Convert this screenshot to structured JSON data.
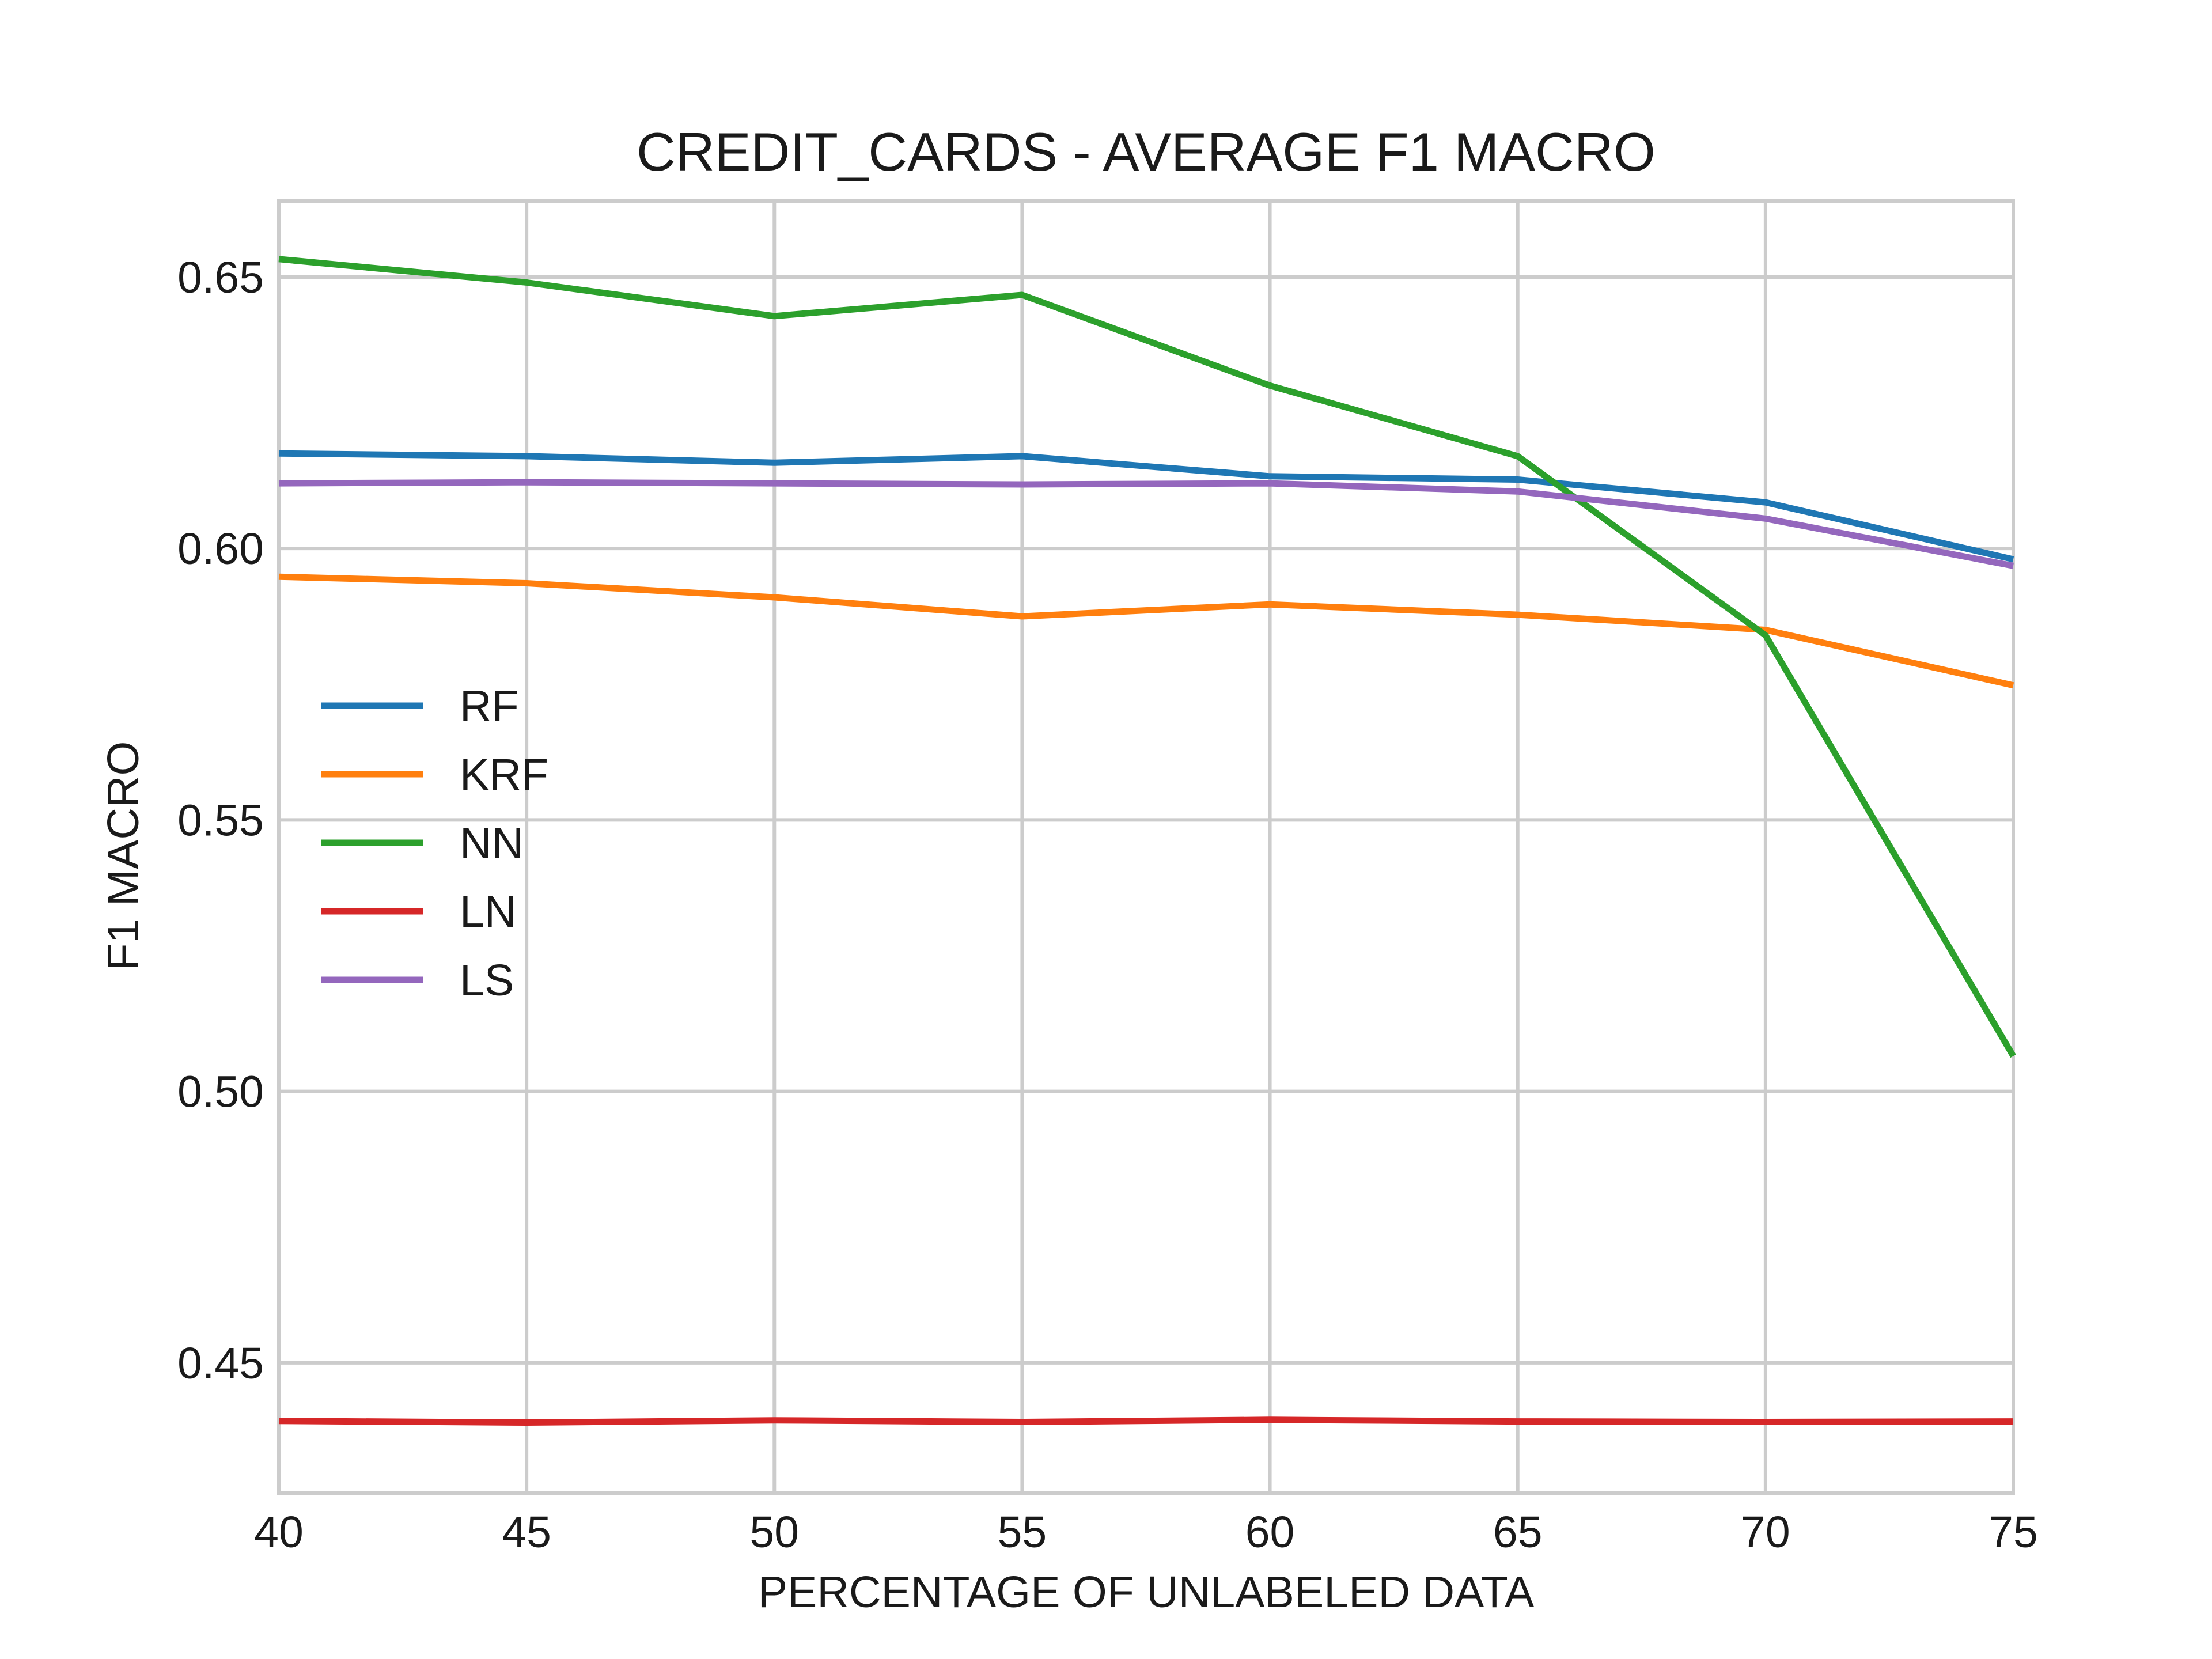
{
  "chart_data": {
    "type": "line",
    "title": "CREDIT_CARDS - AVERAGE F1 MACRO",
    "xlabel": "PERCENTAGE OF UNLABELED DATA",
    "ylabel": "F1 MACRO",
    "x": [
      40,
      45,
      50,
      55,
      60,
      65,
      70,
      75
    ],
    "xlim": [
      40,
      75
    ],
    "ylim": [
      0.426,
      0.664
    ],
    "xticks": [
      40,
      45,
      50,
      55,
      60,
      65,
      70,
      75
    ],
    "yticks": [
      0.45,
      0.5,
      0.55,
      0.6,
      0.65
    ],
    "xtick_labels": [
      "40",
      "45",
      "50",
      "55",
      "60",
      "65",
      "70",
      "75"
    ],
    "ytick_labels": [
      "0.45",
      "0.50",
      "0.55",
      "0.60",
      "0.65"
    ],
    "grid": true,
    "legend_position": "center-left",
    "series": [
      {
        "name": "RF",
        "color": "#1f77b4",
        "values": [
          0.6175,
          0.617,
          0.6158,
          0.617,
          0.6133,
          0.6127,
          0.6085,
          0.598
        ]
      },
      {
        "name": "KRF",
        "color": "#ff7f0e",
        "values": [
          0.5948,
          0.5936,
          0.591,
          0.5875,
          0.5897,
          0.5878,
          0.585,
          0.5748
        ]
      },
      {
        "name": "NN",
        "color": "#2ca02c",
        "values": [
          0.6533,
          0.649,
          0.6428,
          0.6467,
          0.63,
          0.617,
          0.584,
          0.5065
        ]
      },
      {
        "name": "LN",
        "color": "#d62728",
        "values": [
          0.4393,
          0.439,
          0.4394,
          0.4391,
          0.4395,
          0.4392,
          0.4391,
          0.4392
        ]
      },
      {
        "name": "LS",
        "color": "#9467bd",
        "values": [
          0.612,
          0.6122,
          0.612,
          0.6118,
          0.612,
          0.6105,
          0.6055,
          0.5968
        ]
      }
    ]
  }
}
